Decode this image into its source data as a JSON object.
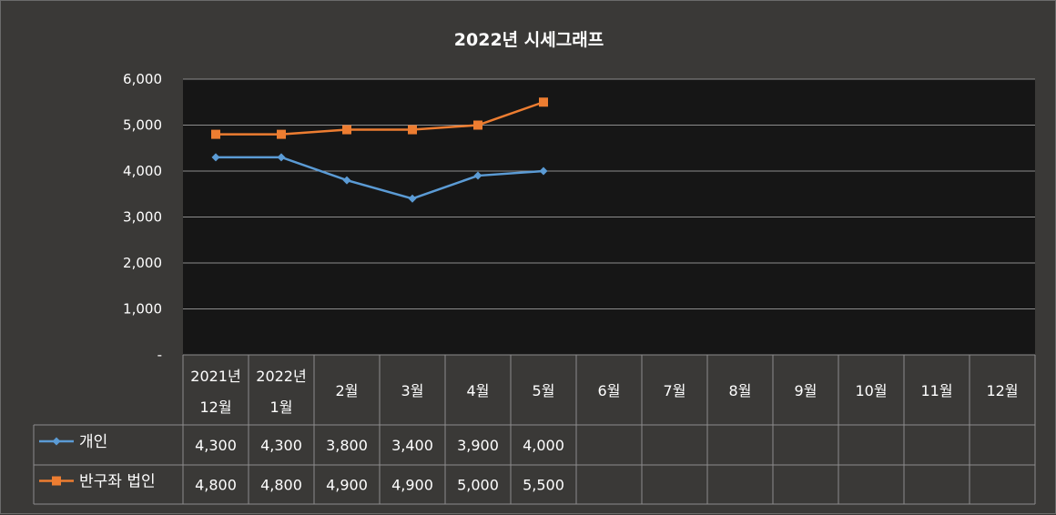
{
  "chart_data": {
    "type": "line",
    "title": "2022년 시세그래프",
    "ylim": [
      0,
      6000
    ],
    "y_ticks": [
      "-",
      "1,000",
      "2,000",
      "3,000",
      "4,000",
      "5,000",
      "6,000"
    ],
    "grid": true,
    "legend_placement": "data table (bottom-left)",
    "categories": [
      {
        "line1": "2021년",
        "line2": "12월"
      },
      {
        "line1": "2022년",
        "line2": "1월"
      },
      {
        "line1": "",
        "line2": "2월"
      },
      {
        "line1": "",
        "line2": "3월"
      },
      {
        "line1": "",
        "line2": "4월"
      },
      {
        "line1": "",
        "line2": "5월"
      },
      {
        "line1": "",
        "line2": "6월"
      },
      {
        "line1": "",
        "line2": "7월"
      },
      {
        "line1": "",
        "line2": "8월"
      },
      {
        "line1": "",
        "line2": "9월"
      },
      {
        "line1": "",
        "line2": "10월"
      },
      {
        "line1": "",
        "line2": "11월"
      },
      {
        "line1": "",
        "line2": "12월"
      }
    ],
    "series": [
      {
        "name": "개인",
        "color": "#5b9bd5",
        "marker": "diamond",
        "values": [
          4300,
          4300,
          3800,
          3400,
          3900,
          4000,
          null,
          null,
          null,
          null,
          null,
          null,
          null
        ],
        "labels": [
          "4,300",
          "4,300",
          "3,800",
          "3,400",
          "3,900",
          "4,000",
          "",
          "",
          "",
          "",
          "",
          "",
          ""
        ]
      },
      {
        "name": "반구좌 법인",
        "color": "#ed7d31",
        "marker": "square",
        "values": [
          4800,
          4800,
          4900,
          4900,
          5000,
          5500,
          null,
          null,
          null,
          null,
          null,
          null,
          null
        ],
        "labels": [
          "4,800",
          "4,800",
          "4,900",
          "4,900",
          "5,000",
          "5,500",
          "",
          "",
          "",
          "",
          "",
          "",
          ""
        ]
      }
    ]
  },
  "colors": {
    "outer_background": "#3a3937",
    "plot_background": "#161616",
    "gridline": "#8c8c8c",
    "table_border": "#8c8c8c",
    "text": "#ffffff"
  }
}
